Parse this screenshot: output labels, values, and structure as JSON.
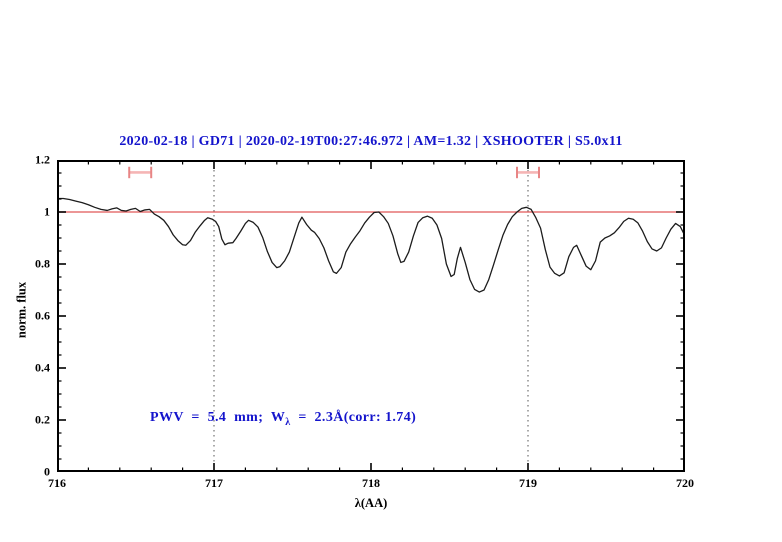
{
  "title": {
    "text": "2020-02-18 | GD71 | 2020-02-19T00:27:46.972 | AM=1.32 | XSHOOTER | S5.0x11",
    "color": "#1414cc"
  },
  "annotation": {
    "pre": "PWV  =  5.4  mm;  W",
    "sub": "λ",
    "post": "  =  2.3Å(corr: 1.74)",
    "color": "#1414cc"
  },
  "axes": {
    "x": {
      "label": "λ(AA)",
      "min": 716,
      "max": 720,
      "major_ticks": [
        716,
        717,
        718,
        719,
        720
      ],
      "tick_labels": [
        "716",
        "717",
        "718",
        "719",
        "720"
      ],
      "minor_step": 0.2
    },
    "y": {
      "label": "norm. flux",
      "min": 0,
      "max": 1.2,
      "major_ticks": [
        0,
        0.2,
        0.4,
        0.6,
        0.8,
        1,
        1.2
      ],
      "tick_labels": [
        "0",
        "0.2",
        "0.4",
        "0.6",
        "0.8",
        "1",
        "1.2"
      ],
      "minor_step": 0.05
    }
  },
  "chart_data": {
    "type": "line",
    "title": "2020-02-18 | GD71 | 2020-02-19T00:27:46.972 | AM=1.32 | XSHOOTER | S5.0x11",
    "xlabel": "λ(AA)",
    "ylabel": "norm. flux",
    "xlim": [
      716,
      720
    ],
    "ylim": [
      0,
      1.2
    ],
    "grid": false,
    "legend": "none",
    "frame_color": "#000000",
    "curve_color": "#1c1c1c",
    "series": [
      {
        "name": "normalized-spectrum",
        "points": [
          [
            716.0,
            1.052
          ],
          [
            716.04,
            1.052
          ],
          [
            716.08,
            1.048
          ],
          [
            716.12,
            1.042
          ],
          [
            716.16,
            1.036
          ],
          [
            716.2,
            1.028
          ],
          [
            716.24,
            1.018
          ],
          [
            716.28,
            1.01
          ],
          [
            716.32,
            1.006
          ],
          [
            716.35,
            1.012
          ],
          [
            716.38,
            1.016
          ],
          [
            716.41,
            1.006
          ],
          [
            716.44,
            1.004
          ],
          [
            716.47,
            1.01
          ],
          [
            716.5,
            1.014
          ],
          [
            716.53,
            1.002
          ],
          [
            716.56,
            1.008
          ],
          [
            716.59,
            1.01
          ],
          [
            716.62,
            0.992
          ],
          [
            716.65,
            0.982
          ],
          [
            716.68,
            0.968
          ],
          [
            716.71,
            0.944
          ],
          [
            716.74,
            0.912
          ],
          [
            716.77,
            0.89
          ],
          [
            716.8,
            0.874
          ],
          [
            716.82,
            0.872
          ],
          [
            716.85,
            0.89
          ],
          [
            716.88,
            0.922
          ],
          [
            716.91,
            0.946
          ],
          [
            716.94,
            0.968
          ],
          [
            716.96,
            0.978
          ],
          [
            716.99,
            0.972
          ],
          [
            717.01,
            0.964
          ],
          [
            717.03,
            0.944
          ],
          [
            717.05,
            0.896
          ],
          [
            717.07,
            0.874
          ],
          [
            717.09,
            0.88
          ],
          [
            717.12,
            0.882
          ],
          [
            717.14,
            0.898
          ],
          [
            717.17,
            0.926
          ],
          [
            717.2,
            0.956
          ],
          [
            717.22,
            0.968
          ],
          [
            717.25,
            0.96
          ],
          [
            717.28,
            0.942
          ],
          [
            717.31,
            0.902
          ],
          [
            717.34,
            0.848
          ],
          [
            717.37,
            0.806
          ],
          [
            717.4,
            0.786
          ],
          [
            717.42,
            0.79
          ],
          [
            717.45,
            0.812
          ],
          [
            717.48,
            0.846
          ],
          [
            717.51,
            0.902
          ],
          [
            717.54,
            0.958
          ],
          [
            717.56,
            0.98
          ],
          [
            717.59,
            0.952
          ],
          [
            717.62,
            0.93
          ],
          [
            717.64,
            0.922
          ],
          [
            717.67,
            0.898
          ],
          [
            717.7,
            0.862
          ],
          [
            717.73,
            0.812
          ],
          [
            717.76,
            0.77
          ],
          [
            717.78,
            0.764
          ],
          [
            717.81,
            0.786
          ],
          [
            717.84,
            0.846
          ],
          [
            717.87,
            0.878
          ],
          [
            717.9,
            0.904
          ],
          [
            717.93,
            0.928
          ],
          [
            717.96,
            0.958
          ],
          [
            717.99,
            0.98
          ],
          [
            718.02,
            0.998
          ],
          [
            718.05,
            1.0
          ],
          [
            718.08,
            0.982
          ],
          [
            718.11,
            0.956
          ],
          [
            718.14,
            0.908
          ],
          [
            718.17,
            0.84
          ],
          [
            718.19,
            0.806
          ],
          [
            718.21,
            0.81
          ],
          [
            718.24,
            0.846
          ],
          [
            718.27,
            0.908
          ],
          [
            718.3,
            0.96
          ],
          [
            718.33,
            0.978
          ],
          [
            718.36,
            0.984
          ],
          [
            718.39,
            0.976
          ],
          [
            718.42,
            0.95
          ],
          [
            718.45,
            0.898
          ],
          [
            718.48,
            0.8
          ],
          [
            718.51,
            0.752
          ],
          [
            718.53,
            0.76
          ],
          [
            718.55,
            0.822
          ],
          [
            718.57,
            0.864
          ],
          [
            718.6,
            0.806
          ],
          [
            718.63,
            0.74
          ],
          [
            718.66,
            0.702
          ],
          [
            718.69,
            0.692
          ],
          [
            718.72,
            0.7
          ],
          [
            718.75,
            0.74
          ],
          [
            718.78,
            0.796
          ],
          [
            718.81,
            0.854
          ],
          [
            718.84,
            0.91
          ],
          [
            718.87,
            0.952
          ],
          [
            718.9,
            0.982
          ],
          [
            718.93,
            1.0
          ],
          [
            718.96,
            1.014
          ],
          [
            718.99,
            1.018
          ],
          [
            719.02,
            1.01
          ],
          [
            719.05,
            0.978
          ],
          [
            719.08,
            0.938
          ],
          [
            719.11,
            0.856
          ],
          [
            719.14,
            0.788
          ],
          [
            719.17,
            0.764
          ],
          [
            719.2,
            0.754
          ],
          [
            719.23,
            0.766
          ],
          [
            719.26,
            0.828
          ],
          [
            719.29,
            0.864
          ],
          [
            719.31,
            0.872
          ],
          [
            719.34,
            0.832
          ],
          [
            719.37,
            0.792
          ],
          [
            719.4,
            0.778
          ],
          [
            719.43,
            0.812
          ],
          [
            719.46,
            0.884
          ],
          [
            719.49,
            0.9
          ],
          [
            719.52,
            0.908
          ],
          [
            719.55,
            0.92
          ],
          [
            719.58,
            0.94
          ],
          [
            719.61,
            0.964
          ],
          [
            719.64,
            0.976
          ],
          [
            719.67,
            0.972
          ],
          [
            719.7,
            0.958
          ],
          [
            719.73,
            0.926
          ],
          [
            719.76,
            0.886
          ],
          [
            719.79,
            0.858
          ],
          [
            719.82,
            0.85
          ],
          [
            719.85,
            0.862
          ],
          [
            719.88,
            0.9
          ],
          [
            719.91,
            0.934
          ],
          [
            719.94,
            0.956
          ],
          [
            719.97,
            0.944
          ],
          [
            720.0,
            0.908
          ]
        ]
      }
    ],
    "reference_lines": {
      "horizontal": [
        {
          "y": 1.0,
          "color": "#e05858"
        }
      ],
      "vertical": [
        {
          "x": 717,
          "style": "dotted",
          "color": "#555555"
        },
        {
          "x": 719,
          "style": "dotted",
          "color": "#555555"
        }
      ]
    },
    "band_markers": [
      {
        "x_min": 716.46,
        "x_max": 716.6,
        "y": 1.152,
        "cap_half_height": 0.022,
        "bar_color": "#f5b5b5",
        "cap_color": "#e88585"
      },
      {
        "x_min": 718.93,
        "x_max": 719.07,
        "y": 1.152,
        "cap_half_height": 0.022,
        "bar_color": "#f5b5b5",
        "cap_color": "#e88585"
      }
    ]
  }
}
